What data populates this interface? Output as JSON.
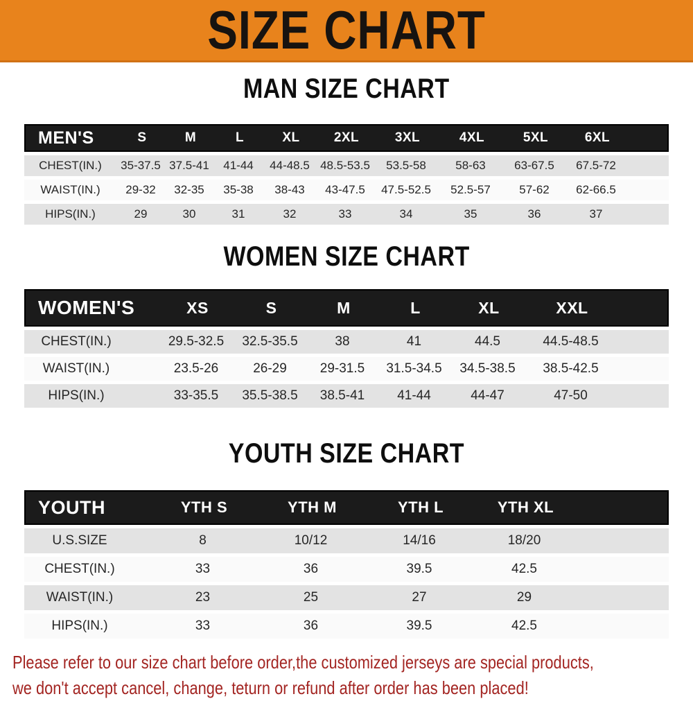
{
  "banner": {
    "title": "SIZE CHART",
    "bg_color": "#e8831c",
    "text_color": "#171310"
  },
  "sections": [
    {
      "title": "MAN SIZE CHART",
      "header_label": "MEN'S",
      "columns": [
        "S",
        "M",
        "L",
        "XL",
        "2XL",
        "3XL",
        "4XL",
        "5XL",
        "6XL"
      ],
      "rows": [
        {
          "label": "CHEST(IN.)",
          "values": [
            "35-37.5",
            "37.5-41",
            "41-44",
            "44-48.5",
            "48.5-53.5",
            "53.5-58",
            "58-63",
            "63-67.5",
            "67.5-72"
          ]
        },
        {
          "label": "WAIST(IN.)",
          "values": [
            "29-32",
            "32-35",
            "35-38",
            "38-43",
            "43-47.5",
            "47.5-52.5",
            "52.5-57",
            "57-62",
            "62-66.5"
          ]
        },
        {
          "label": "HIPS(IN.)",
          "values": [
            "29",
            "30",
            "31",
            "32",
            "33",
            "34",
            "35",
            "36",
            "37"
          ]
        }
      ]
    },
    {
      "title": "WOMEN SIZE CHART",
      "header_label": "WOMEN'S",
      "columns": [
        "XS",
        "S",
        "M",
        "L",
        "XL",
        "XXL"
      ],
      "rows": [
        {
          "label": "CHEST(IN.)",
          "values": [
            "29.5-32.5",
            "32.5-35.5",
            "38",
            "41",
            "44.5",
            "44.5-48.5"
          ]
        },
        {
          "label": "WAIST(IN.)",
          "values": [
            "23.5-26",
            "26-29",
            "29-31.5",
            "31.5-34.5",
            "34.5-38.5",
            "38.5-42.5"
          ]
        },
        {
          "label": "HIPS(IN.)",
          "values": [
            "33-35.5",
            "35.5-38.5",
            "38.5-41",
            "41-44",
            "44-47",
            "47-50"
          ]
        }
      ]
    },
    {
      "title": "YOUTH SIZE CHART",
      "header_label": "YOUTH",
      "columns": [
        "YTH S",
        "YTH M",
        "YTH L",
        "YTH XL"
      ],
      "rows": [
        {
          "label": "U.S.SIZE",
          "values": [
            "8",
            "10/12",
            "14/16",
            "18/20"
          ]
        },
        {
          "label": "CHEST(IN.)",
          "values": [
            "33",
            "36",
            "39.5",
            "42.5"
          ]
        },
        {
          "label": "WAIST(IN.)",
          "values": [
            "23",
            "25",
            "27",
            "29"
          ]
        },
        {
          "label": "HIPS(IN.)",
          "values": [
            "33",
            "36",
            "39.5",
            "42.5"
          ]
        }
      ]
    }
  ],
  "footer_note": {
    "line1": "Please refer to our size chart before order,the customized jerseys are special products,",
    "line2": "we don't accept cancel, change, teturn or refund after order has been placed!",
    "color": "#a32522"
  },
  "colors": {
    "banner_orange": "#e8831c",
    "header_black": "#1b1b1b",
    "row_gray": "#e3e3e3",
    "row_white": "#fafafa",
    "note_red": "#a32522"
  },
  "chart_data": [
    {
      "type": "table",
      "title": "MAN SIZE CHART",
      "columns": [
        "MEN'S",
        "S",
        "M",
        "L",
        "XL",
        "2XL",
        "3XL",
        "4XL",
        "5XL",
        "6XL"
      ],
      "rows": [
        [
          "CHEST(IN.)",
          "35-37.5",
          "37.5-41",
          "41-44",
          "44-48.5",
          "48.5-53.5",
          "53.5-58",
          "58-63",
          "63-67.5",
          "67.5-72"
        ],
        [
          "WAIST(IN.)",
          "29-32",
          "32-35",
          "35-38",
          "38-43",
          "43-47.5",
          "47.5-52.5",
          "52.5-57",
          "57-62",
          "62-66.5"
        ],
        [
          "HIPS(IN.)",
          "29",
          "30",
          "31",
          "32",
          "33",
          "34",
          "35",
          "36",
          "37"
        ]
      ]
    },
    {
      "type": "table",
      "title": "WOMEN SIZE CHART",
      "columns": [
        "WOMEN'S",
        "XS",
        "S",
        "M",
        "L",
        "XL",
        "XXL"
      ],
      "rows": [
        [
          "CHEST(IN.)",
          "29.5-32.5",
          "32.5-35.5",
          "38",
          "41",
          "44.5",
          "44.5-48.5"
        ],
        [
          "WAIST(IN.)",
          "23.5-26",
          "26-29",
          "29-31.5",
          "31.5-34.5",
          "34.5-38.5",
          "38.5-42.5"
        ],
        [
          "HIPS(IN.)",
          "33-35.5",
          "35.5-38.5",
          "38.5-41",
          "41-44",
          "44-47",
          "47-50"
        ]
      ]
    },
    {
      "type": "table",
      "title": "YOUTH SIZE CHART",
      "columns": [
        "YOUTH",
        "YTH S",
        "YTH M",
        "YTH L",
        "YTH XL"
      ],
      "rows": [
        [
          "U.S.SIZE",
          "8",
          "10/12",
          "14/16",
          "18/20"
        ],
        [
          "CHEST(IN.)",
          "33",
          "36",
          "39.5",
          "42.5"
        ],
        [
          "WAIST(IN.)",
          "23",
          "25",
          "27",
          "29"
        ],
        [
          "HIPS(IN.)",
          "33",
          "36",
          "39.5",
          "42.5"
        ]
      ]
    }
  ]
}
